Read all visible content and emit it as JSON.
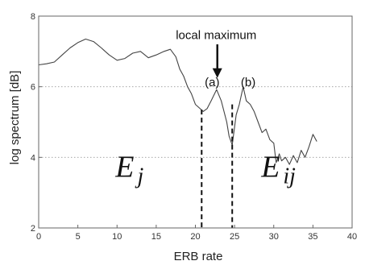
{
  "chart_data": {
    "type": "line",
    "title": "",
    "xlabel": "ERB rate",
    "ylabel": "log spectrum [dB]",
    "xlim": [
      0,
      40
    ],
    "ylim": [
      2,
      8
    ],
    "xticks": [
      0,
      5,
      10,
      15,
      20,
      25,
      30,
      35,
      40
    ],
    "yticks": [
      2,
      4,
      6,
      8
    ],
    "x_tick_labels": [
      "0",
      "5",
      "10",
      "15",
      "20",
      "25",
      "30",
      "35",
      "40"
    ],
    "y_tick_labels": [
      "2",
      "4",
      "6",
      "8"
    ],
    "grid": {
      "horizontal": true,
      "style": "dotted",
      "values": [
        4,
        6
      ]
    },
    "series": [
      {
        "x": [
          0,
          1,
          2,
          3,
          4,
          5,
          6,
          7,
          8,
          9,
          10,
          11,
          12,
          13,
          14,
          15,
          16,
          16.8,
          17.5,
          18,
          18.5,
          19,
          19.5,
          20,
          20.5,
          21,
          21.5,
          22,
          22.7,
          23.3,
          24,
          24.3,
          24.7,
          25.2,
          25.6,
          26.1,
          26.5,
          27,
          27.5,
          28,
          28.5,
          29,
          29.5,
          30,
          30.3,
          30.7,
          31,
          31.5,
          32,
          32.5,
          33,
          33.5,
          34,
          34.5,
          35,
          35.5
        ],
        "y": [
          6.62,
          6.65,
          6.7,
          6.9,
          7.1,
          7.25,
          7.35,
          7.28,
          7.1,
          6.9,
          6.75,
          6.8,
          6.95,
          7.0,
          6.82,
          6.9,
          7.0,
          7.06,
          6.85,
          6.5,
          6.3,
          6.0,
          5.8,
          5.5,
          5.4,
          5.3,
          5.38,
          5.6,
          5.92,
          5.6,
          5.0,
          4.6,
          4.35,
          5.2,
          5.5,
          6.0,
          5.6,
          5.5,
          5.3,
          5.0,
          4.7,
          4.8,
          4.5,
          4.4,
          3.85,
          4.1,
          3.9,
          4.0,
          3.8,
          4.05,
          3.85,
          4.2,
          4.0,
          4.3,
          4.65,
          4.45
        ]
      }
    ],
    "vlines": [
      {
        "x": 20.8,
        "y_top": 5.35,
        "style": "dashed"
      },
      {
        "x": 24.7,
        "y_top": 5.5,
        "style": "dashed"
      }
    ],
    "annotations": [
      {
        "text": "local maximum",
        "x": 17.5,
        "y": 7.35
      },
      {
        "text": "(a)",
        "x": 21.2,
        "y": 6.02
      },
      {
        "text": "(b)",
        "x": 25.8,
        "y": 6.02
      },
      {
        "text": "E",
        "sub": "j",
        "x": 9.8,
        "y": 3.45
      },
      {
        "text": "E",
        "sub": "ij",
        "x": 28.4,
        "y": 3.45
      }
    ],
    "arrow": {
      "x": 22.8,
      "y_from": 7.2,
      "y_to": 6.25
    }
  }
}
